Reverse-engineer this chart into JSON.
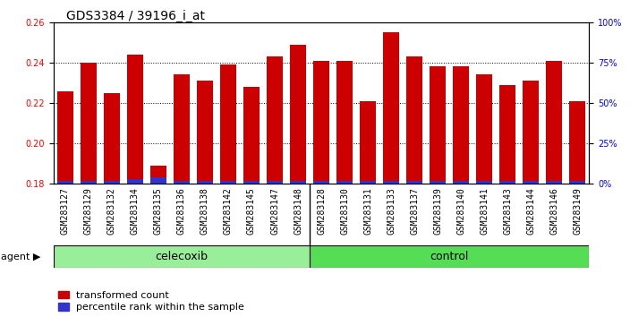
{
  "title": "GDS3384 / 39196_i_at",
  "samples": [
    "GSM283127",
    "GSM283129",
    "GSM283132",
    "GSM283134",
    "GSM283135",
    "GSM283136",
    "GSM283138",
    "GSM283142",
    "GSM283145",
    "GSM283147",
    "GSM283148",
    "GSM283128",
    "GSM283130",
    "GSM283131",
    "GSM283133",
    "GSM283137",
    "GSM283139",
    "GSM283140",
    "GSM283141",
    "GSM283143",
    "GSM283144",
    "GSM283146",
    "GSM283149"
  ],
  "transformed_count": [
    0.226,
    0.24,
    0.225,
    0.244,
    0.189,
    0.234,
    0.231,
    0.239,
    0.228,
    0.243,
    0.249,
    0.241,
    0.241,
    0.221,
    0.255,
    0.243,
    0.238,
    0.238,
    0.234,
    0.229,
    0.231,
    0.241,
    0.221
  ],
  "percentile_rank": [
    2,
    2,
    2,
    3,
    4,
    2,
    2,
    2,
    2,
    2,
    2,
    2,
    2,
    2,
    2,
    2,
    2,
    2,
    2,
    2,
    2,
    2,
    2
  ],
  "celecoxib_count": 11,
  "control_count": 12,
  "ylim_left": [
    0.18,
    0.26
  ],
  "ylim_right": [
    0,
    100
  ],
  "yticks_left": [
    0.18,
    0.2,
    0.22,
    0.24,
    0.26
  ],
  "yticks_right": [
    0,
    25,
    50,
    75,
    100
  ],
  "ytick_labels_right": [
    "0%",
    "25%",
    "50%",
    "75%",
    "100%"
  ],
  "bar_color_red": "#CC0000",
  "bar_color_blue": "#3333CC",
  "celecoxib_color": "#99EE99",
  "control_color": "#55DD55",
  "bar_bottom": 0.18,
  "legend_red_label": "transformed count",
  "legend_blue_label": "percentile rank within the sample",
  "xtick_bg_color": "#CCCCCC",
  "title_fontsize": 10,
  "tick_fontsize": 7,
  "group_fontsize": 9,
  "legend_fontsize": 8
}
